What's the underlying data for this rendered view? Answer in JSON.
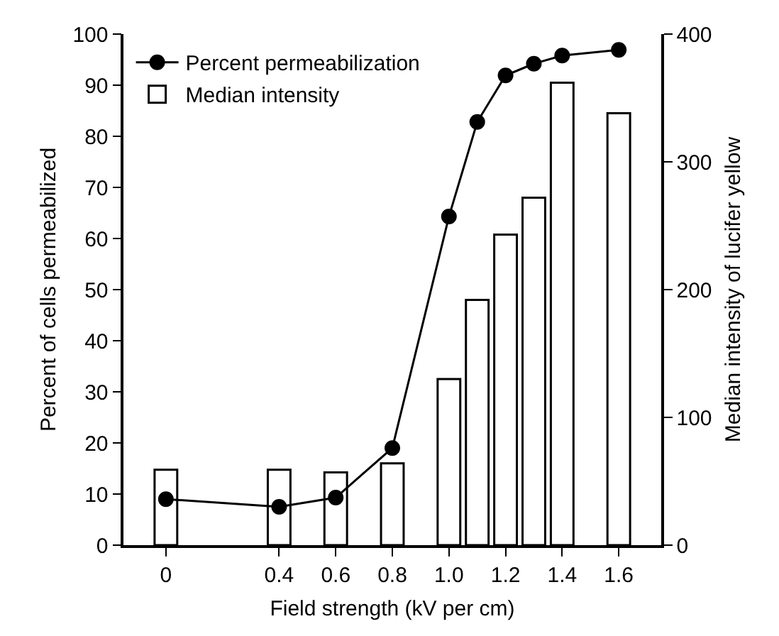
{
  "chart_data": {
    "type": "bar",
    "xlabel": "Field strength (kV per cm)",
    "ylabel": "Percent of cells permeabilized",
    "y2label": "Median intensity of lucifer yellow",
    "x": [
      0,
      0.4,
      0.6,
      0.8,
      1.0,
      1.1,
      1.2,
      1.3,
      1.4,
      1.6
    ],
    "series": [
      {
        "name": "Percent permeabilization",
        "type": "line",
        "color": "#000000",
        "marker": "circle",
        "values": [
          9,
          7.5,
          9.3,
          19,
          64.3,
          82.8,
          91.9,
          94.2,
          95.8,
          96.9
        ]
      },
      {
        "name": "Median intensity",
        "axis": "y2",
        "color": "#ffffff",
        "values": [
          59,
          59,
          57,
          64,
          130,
          192,
          243,
          272,
          362,
          338
        ]
      }
    ],
    "xlim": [
      -0.15,
      1.75
    ],
    "xticks": [
      0,
      0.4,
      0.6,
      0.8,
      {
        "value": 1,
        "label": "1.0"
      },
      1.2,
      1.4,
      1.6
    ],
    "ylim": [
      0,
      100
    ],
    "yticks": [
      0,
      10,
      20,
      30,
      40,
      50,
      60,
      70,
      80,
      90,
      100
    ],
    "y2lim": [
      0,
      400
    ],
    "y2ticks": [
      0,
      100,
      200,
      300,
      400
    ],
    "grid": false,
    "legend": "top left"
  }
}
